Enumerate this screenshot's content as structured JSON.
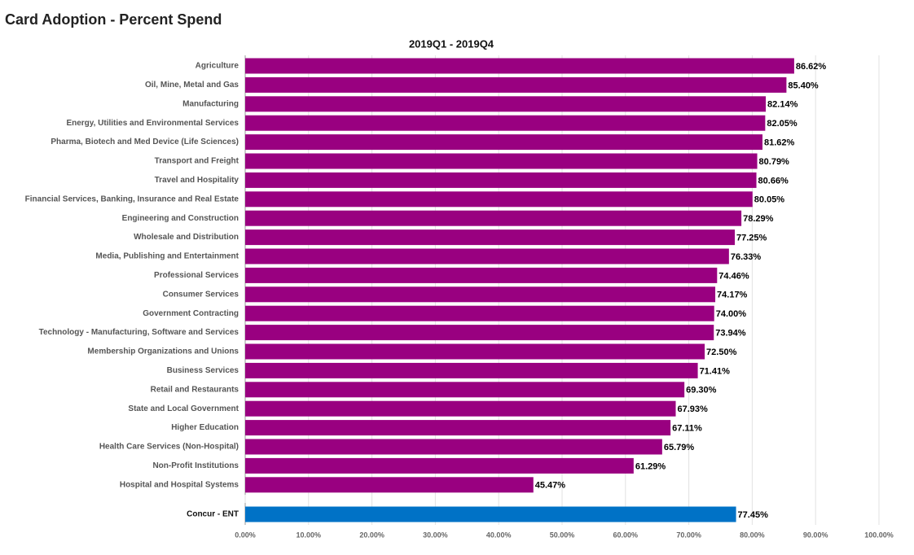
{
  "chart_data": {
    "type": "hbar",
    "title": "Card Adoption - Percent Spend",
    "subtitle": "2019Q1 - 2019Q4",
    "categories": [
      "Agriculture",
      "Oil, Mine, Metal and Gas",
      "Manufacturing",
      "Energy, Utilities and Environmental Services",
      "Pharma, Biotech and Med Device (Life Sciences)",
      "Transport and Freight",
      "Travel and Hospitality",
      "Financial Services, Banking, Insurance and Real Estate",
      "Engineering and Construction",
      "Wholesale and Distribution",
      "Media, Publishing and Entertainment",
      "Professional Services",
      "Consumer Services",
      "Government Contracting",
      "Technology - Manufacturing, Software and Services",
      "Membership Organizations and Unions",
      "Business Services",
      "Retail and Restaurants",
      "State and Local Government",
      "Higher Education",
      "Health Care Services (Non-Hospital)",
      "Non-Profit Institutions",
      "Hospital and Hospital Systems",
      "Concur - ENT"
    ],
    "values": [
      86.62,
      85.4,
      82.14,
      82.05,
      81.62,
      80.79,
      80.66,
      80.05,
      78.29,
      77.25,
      76.33,
      74.46,
      74.17,
      74.0,
      73.94,
      72.5,
      71.41,
      69.3,
      67.93,
      67.11,
      65.79,
      61.29,
      45.47,
      77.45
    ],
    "value_labels": [
      "86.62%",
      "85.40%",
      "82.14%",
      "82.05%",
      "81.62%",
      "80.79%",
      "80.66%",
      "80.05%",
      "78.29%",
      "77.25%",
      "76.33%",
      "74.46%",
      "74.17%",
      "74.00%",
      "73.94%",
      "72.50%",
      "71.41%",
      "69.30%",
      "67.93%",
      "67.11%",
      "65.79%",
      "61.29%",
      "45.47%",
      "77.45%"
    ],
    "colors": [
      "#990080",
      "#990080",
      "#990080",
      "#990080",
      "#990080",
      "#990080",
      "#990080",
      "#990080",
      "#990080",
      "#990080",
      "#990080",
      "#990080",
      "#990080",
      "#990080",
      "#990080",
      "#990080",
      "#990080",
      "#990080",
      "#990080",
      "#990080",
      "#990080",
      "#990080",
      "#990080",
      "#0072c6"
    ],
    "xlim": [
      0,
      100
    ],
    "xticks": [
      {
        "value": 0,
        "label": "0.00%"
      },
      {
        "value": 10,
        "label": "10.00%"
      },
      {
        "value": 20,
        "label": "20.00%"
      },
      {
        "value": 30,
        "label": "30.00%"
      },
      {
        "value": 40,
        "label": "40.00%"
      },
      {
        "value": 50,
        "label": "50.00%"
      },
      {
        "value": 60,
        "label": "60.00%"
      },
      {
        "value": 70,
        "label": "70.00%"
      },
      {
        "value": 80,
        "label": "80.00%"
      },
      {
        "value": 90,
        "label": "90.00%"
      },
      {
        "value": 100,
        "label": "100.00%"
      }
    ],
    "grid": true
  }
}
